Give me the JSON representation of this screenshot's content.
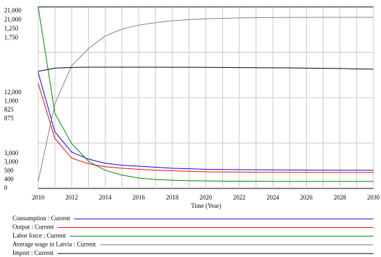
{
  "chart_data": {
    "type": "line",
    "x_label": "Time (Year)",
    "x": [
      2010,
      2011,
      2012,
      2013,
      2014,
      2015,
      2016,
      2017,
      2018,
      2019,
      2020,
      2021,
      2022,
      2023,
      2024,
      2025,
      2026,
      2027,
      2028,
      2029,
      2030
    ],
    "xlim": [
      2010,
      2030
    ],
    "xticks": [
      2010,
      2012,
      2014,
      2016,
      2018,
      2020,
      2022,
      2024,
      2026,
      2028,
      2030
    ],
    "y_label_rows": [
      [
        "21,000",
        "21,000",
        "1,250",
        "1,750"
      ],
      [
        "12,000",
        "1,000",
        "825",
        "875"
      ],
      [
        "3,000",
        "3,000",
        "500",
        "400",
        "0"
      ]
    ],
    "grid": true,
    "series": [
      {
        "name": "Consumption : Current",
        "color": "#0000ff",
        "ylim": [
          3000,
          21000
        ],
        "values": [
          14500,
          8600,
          6600,
          5900,
          5500,
          5300,
          5200,
          5100,
          5000,
          4950,
          4900,
          4880,
          4860,
          4850,
          4840,
          4830,
          4820,
          4810,
          4800,
          4800,
          4800
        ]
      },
      {
        "name": "Output : Current",
        "color": "#ff0000",
        "ylim": [
          3000,
          21000
        ],
        "values": [
          13400,
          7950,
          6000,
          5450,
          5150,
          5000,
          4900,
          4800,
          4750,
          4700,
          4650,
          4630,
          4620,
          4610,
          4600,
          4600,
          4590,
          4590,
          4580,
          4580,
          4580
        ]
      },
      {
        "name": "Labor force : Current",
        "color": "#008000",
        "ylim": [
          500,
          1250
        ],
        "values": [
          1250,
          810,
          685,
          612,
          575,
          555,
          543,
          537,
          534,
          532,
          531,
          530,
          530,
          530,
          529,
          529,
          529,
          529,
          529,
          529,
          529
        ]
      },
      {
        "name": "Average wage in Latvia : Current",
        "color": "#808080",
        "ylim": [
          400,
          1750
        ],
        "values": [
          451,
          1030,
          1313,
          1440,
          1534,
          1585,
          1615,
          1633,
          1647,
          1656,
          1662,
          1665,
          1668,
          1670,
          1671,
          1672,
          1672,
          1673,
          1673,
          1673,
          1673
        ]
      },
      {
        "name": "Import : Current",
        "color": "#000000",
        "ylim": [
          0,
          1750
        ],
        "values": [
          1129,
          1160,
          1166,
          1169,
          1169,
          1169,
          1169,
          1169,
          1168,
          1168,
          1167,
          1166,
          1165,
          1164,
          1163,
          1162,
          1160,
          1158,
          1156,
          1152,
          1150
        ]
      }
    ]
  }
}
